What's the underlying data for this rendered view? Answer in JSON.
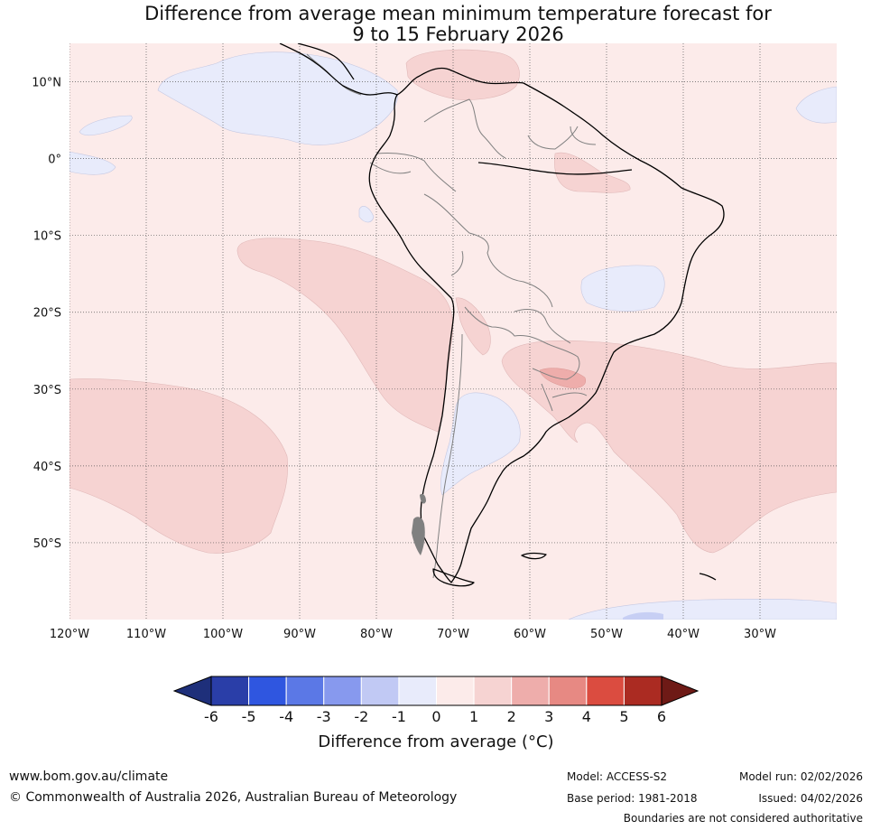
{
  "title": {
    "line1": "Difference from average mean minimum temperature forecast for",
    "line2": "9 to 15 February 2026"
  },
  "map": {
    "region": "South America",
    "lon_range": [
      -120,
      -20
    ],
    "lat_range": [
      -60,
      15
    ],
    "lat_ticks": [
      {
        "value": 10,
        "label": "10°N"
      },
      {
        "value": 0,
        "label": "0°"
      },
      {
        "value": -10,
        "label": "10°S"
      },
      {
        "value": -20,
        "label": "20°S"
      },
      {
        "value": -30,
        "label": "30°S"
      },
      {
        "value": -40,
        "label": "40°S"
      },
      {
        "value": -50,
        "label": "50°S"
      }
    ],
    "lon_ticks": [
      {
        "value": -120,
        "label": "120°W"
      },
      {
        "value": -110,
        "label": "110°W"
      },
      {
        "value": -100,
        "label": "100°W"
      },
      {
        "value": -90,
        "label": "90°W"
      },
      {
        "value": -80,
        "label": "80°W"
      },
      {
        "value": -70,
        "label": "70°W"
      },
      {
        "value": -60,
        "label": "60°W"
      },
      {
        "value": -50,
        "label": "50°W"
      },
      {
        "value": -40,
        "label": "40°W"
      },
      {
        "value": -30,
        "label": "30°W"
      }
    ],
    "background_color": "#fcebea",
    "coast_color": "#000000",
    "border_color": "#808080",
    "grid_color": "#555555"
  },
  "colorbar": {
    "title": "Difference from average (°C)",
    "tick_labels": [
      "-6",
      "-5",
      "-4",
      "-3",
      "-2",
      "-1",
      "0",
      "1",
      "2",
      "3",
      "4",
      "5",
      "6"
    ],
    "colors": [
      "#2a3ea8",
      "#2f56e0",
      "#5b78e6",
      "#8799ee",
      "#c1c9f4",
      "#e8ebfb",
      "#fcebea",
      "#f6d3d2",
      "#eeadab",
      "#e78983",
      "#db4c40",
      "#ab2b22"
    ],
    "under_color": "#1e2f7a",
    "over_color": "#6e1a16"
  },
  "footer": {
    "website": "www.bom.gov.au/climate",
    "copyright": "© Commonwealth of Australia 2026, Australian Bureau of Meteorology",
    "model": "Model: ACCESS-S2",
    "base_period": "Base period: 1981-2018",
    "model_run": "Model run: 02/02/2026",
    "issued": "Issued: 04/02/2026",
    "disclaimer": "Boundaries are not considered authoritative"
  }
}
